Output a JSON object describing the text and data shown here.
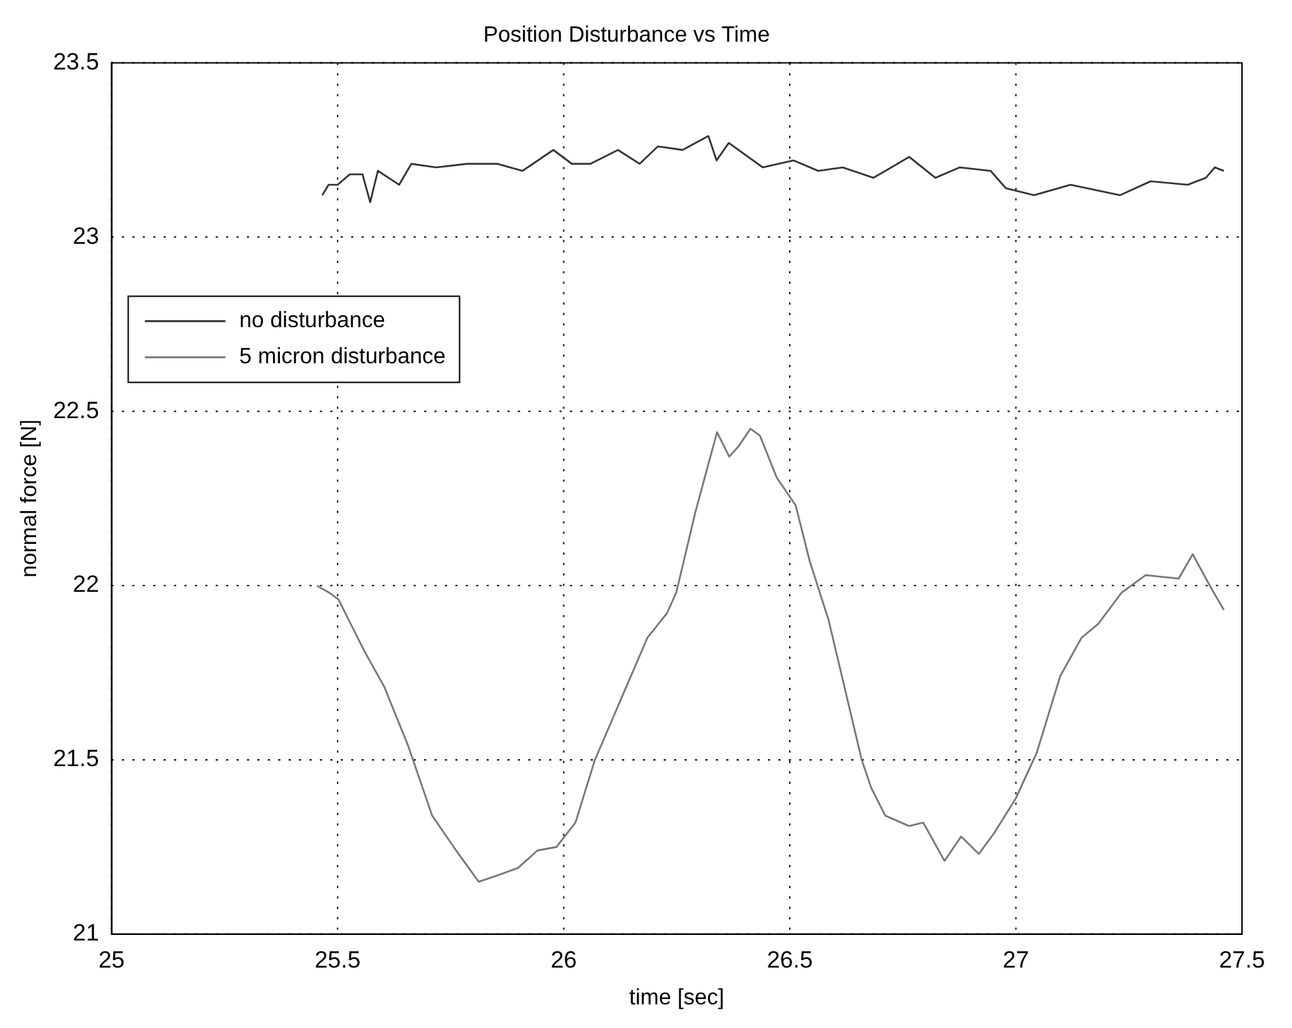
{
  "chart_data": {
    "type": "line",
    "title": "Position Disturbance vs Time",
    "xlabel": "time [sec]",
    "ylabel": "normal force [N]",
    "xlim": [
      25,
      27.5
    ],
    "ylim": [
      21,
      23.5
    ],
    "xticks": [
      25,
      25.5,
      26,
      26.5,
      27,
      27.5
    ],
    "yticks": [
      21,
      21.5,
      22,
      22.5,
      23,
      23.5
    ],
    "grid": true,
    "legend": "left",
    "line_style": "solid",
    "marker": "none",
    "series": [
      {
        "name": "no disturbance",
        "color": "#333333",
        "x": [
          25.466,
          25.48,
          25.5,
          25.527,
          25.555,
          25.572,
          25.589,
          25.636,
          25.663,
          25.718,
          25.786,
          25.854,
          25.909,
          25.977,
          26.018,
          26.059,
          26.12,
          26.168,
          26.208,
          26.263,
          26.32,
          26.338,
          26.365,
          26.44,
          26.508,
          26.563,
          26.617,
          26.685,
          26.764,
          26.822,
          26.876,
          26.944,
          26.978,
          27.04,
          27.121,
          27.23,
          27.298,
          27.38,
          27.42,
          27.44,
          27.46
        ],
        "values": [
          23.12,
          23.15,
          23.15,
          23.18,
          23.18,
          23.1,
          23.19,
          23.15,
          23.21,
          23.2,
          23.21,
          23.21,
          23.19,
          23.25,
          23.21,
          23.21,
          23.25,
          23.21,
          23.26,
          23.25,
          23.29,
          23.22,
          23.27,
          23.2,
          23.22,
          23.19,
          23.2,
          23.17,
          23.23,
          23.17,
          23.2,
          23.19,
          23.14,
          23.12,
          23.15,
          23.12,
          23.16,
          23.15,
          23.17,
          23.2,
          23.19
        ]
      },
      {
        "name": "5 micron disturbance",
        "color": "#777777",
        "x": [
          25.454,
          25.481,
          25.502,
          25.529,
          25.56,
          25.603,
          25.656,
          25.709,
          25.762,
          25.812,
          25.857,
          25.899,
          25.942,
          25.984,
          26.026,
          26.069,
          26.122,
          26.185,
          26.228,
          26.249,
          26.291,
          26.339,
          26.366,
          26.387,
          26.413,
          26.434,
          26.471,
          26.513,
          26.544,
          26.586,
          26.628,
          26.659,
          26.68,
          26.711,
          26.764,
          26.795,
          26.842,
          26.879,
          26.918,
          26.952,
          27.0,
          27.046,
          27.098,
          27.145,
          27.182,
          27.234,
          27.287,
          27.36,
          27.391,
          27.433,
          27.46
        ],
        "values": [
          22.0,
          21.98,
          21.96,
          21.89,
          21.81,
          21.71,
          21.54,
          21.34,
          21.24,
          21.15,
          21.17,
          21.19,
          21.24,
          21.25,
          21.32,
          21.5,
          21.66,
          21.85,
          21.92,
          21.98,
          22.21,
          22.44,
          22.37,
          22.4,
          22.45,
          22.43,
          22.31,
          22.23,
          22.07,
          21.9,
          21.67,
          21.5,
          21.42,
          21.34,
          21.31,
          21.32,
          21.21,
          21.28,
          21.23,
          21.29,
          21.39,
          21.52,
          21.74,
          21.85,
          21.89,
          21.98,
          22.03,
          22.02,
          22.09,
          21.99,
          21.93
        ]
      }
    ]
  }
}
